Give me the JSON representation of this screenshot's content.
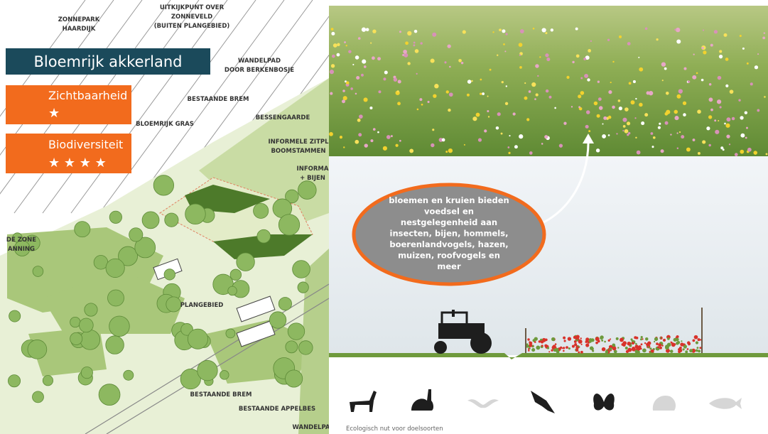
{
  "panel": {
    "title": "Bloemrijk akkerland",
    "ratings": [
      {
        "label": "Zichtbaarheid",
        "stars": "★"
      },
      {
        "label": "Biodiversiteit",
        "stars": "★ ★ ★ ★"
      }
    ]
  },
  "map_labels": [
    {
      "lines": [
        "ZONNEPARK",
        "HAARDIJK"
      ]
    },
    {
      "lines": [
        "UITKIJKPUNT OVER",
        "ZONNEVELD",
        "(BUITEN PLANGEBIED)"
      ]
    },
    {
      "lines": [
        "WANDELPAD",
        "DOOR BERKENBOSJE"
      ]
    },
    {
      "lines": [
        "BESTAANDE BREM"
      ]
    },
    {
      "lines": [
        "BESSENGAARDE"
      ]
    },
    {
      "lines": [
        "BLOEMRIJK GRAS"
      ]
    },
    {
      "lines": [
        "INFORMELE ZITPL",
        "BOOMSTAMMEN"
      ]
    },
    {
      "lines": [
        "INFORMA",
        "+ BIJEN"
      ]
    },
    {
      "lines": [
        "DE ZONE",
        "ANNING"
      ]
    },
    {
      "lines": [
        "PLANGEBIED"
      ]
    },
    {
      "lines": [
        "BESTAANDE BREM"
      ]
    },
    {
      "lines": [
        "BESTAANDE APPELBES"
      ]
    },
    {
      "lines": [
        "WANDELPA"
      ]
    }
  ],
  "callout": {
    "lines": [
      "bloemen en kruien bieden",
      "voedsel en",
      "nestgelegenheid aan",
      "insecten, bijen, hommels,",
      "boerenlandvogels, hazen,",
      "muizen, roofvogels en",
      "meer"
    ]
  },
  "caption": "Ecologisch nut voor doelsoorten"
}
